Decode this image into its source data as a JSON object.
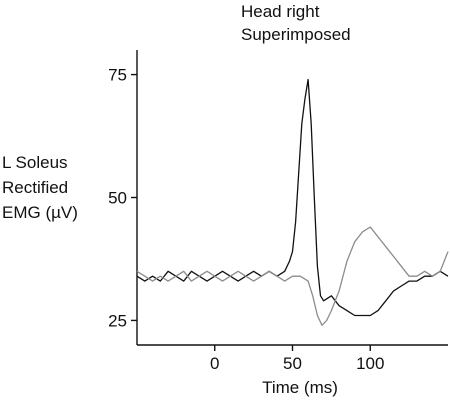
{
  "chart_data": {
    "type": "line",
    "title_lines": [
      "Head right",
      "Superimposed"
    ],
    "ylabel_lines": [
      "L Soleus",
      "Rectified",
      "EMG (µV)"
    ],
    "xlabel": "Time (ms)",
    "xlim": [
      -50,
      150
    ],
    "ylim": [
      20,
      80
    ],
    "xticks": [
      0,
      50,
      100
    ],
    "yticks": [
      25,
      50,
      75
    ],
    "grid": false,
    "legend": "none",
    "series": [
      {
        "color": "#111111",
        "points": [
          [
            -50,
            34
          ],
          [
            -45,
            33
          ],
          [
            -40,
            34
          ],
          [
            -35,
            33
          ],
          [
            -30,
            35
          ],
          [
            -25,
            34
          ],
          [
            -20,
            33
          ],
          [
            -15,
            35
          ],
          [
            -10,
            34
          ],
          [
            -5,
            33
          ],
          [
            0,
            34
          ],
          [
            5,
            35
          ],
          [
            10,
            34
          ],
          [
            15,
            33
          ],
          [
            20,
            34
          ],
          [
            25,
            35
          ],
          [
            30,
            34
          ],
          [
            35,
            35
          ],
          [
            40,
            34
          ],
          [
            45,
            35
          ],
          [
            48,
            37
          ],
          [
            50,
            39
          ],
          [
            52,
            45
          ],
          [
            54,
            55
          ],
          [
            56,
            65
          ],
          [
            58,
            70
          ],
          [
            60,
            74
          ],
          [
            62,
            65
          ],
          [
            64,
            50
          ],
          [
            66,
            36
          ],
          [
            68,
            30
          ],
          [
            70,
            29
          ],
          [
            75,
            30
          ],
          [
            80,
            28
          ],
          [
            85,
            27
          ],
          [
            90,
            26
          ],
          [
            95,
            26
          ],
          [
            100,
            26
          ],
          [
            105,
            27
          ],
          [
            110,
            29
          ],
          [
            115,
            31
          ],
          [
            120,
            32
          ],
          [
            125,
            33
          ],
          [
            130,
            33
          ],
          [
            135,
            34
          ],
          [
            140,
            34
          ],
          [
            145,
            35
          ],
          [
            150,
            34
          ]
        ]
      },
      {
        "color": "#8c8c8c",
        "points": [
          [
            -50,
            35
          ],
          [
            -45,
            34
          ],
          [
            -40,
            33
          ],
          [
            -35,
            34
          ],
          [
            -30,
            33
          ],
          [
            -25,
            34
          ],
          [
            -20,
            35
          ],
          [
            -15,
            33
          ],
          [
            -10,
            34
          ],
          [
            -5,
            35
          ],
          [
            0,
            34
          ],
          [
            5,
            33
          ],
          [
            10,
            34
          ],
          [
            15,
            35
          ],
          [
            20,
            34
          ],
          [
            25,
            33
          ],
          [
            30,
            34
          ],
          [
            35,
            35
          ],
          [
            40,
            34
          ],
          [
            45,
            33
          ],
          [
            50,
            34
          ],
          [
            55,
            34
          ],
          [
            60,
            33
          ],
          [
            63,
            30
          ],
          [
            66,
            26
          ],
          [
            69,
            24
          ],
          [
            72,
            25
          ],
          [
            75,
            27
          ],
          [
            80,
            31
          ],
          [
            85,
            37
          ],
          [
            90,
            41
          ],
          [
            95,
            43
          ],
          [
            100,
            44
          ],
          [
            105,
            42
          ],
          [
            110,
            40
          ],
          [
            115,
            38
          ],
          [
            120,
            36
          ],
          [
            125,
            34
          ],
          [
            130,
            34
          ],
          [
            135,
            35
          ],
          [
            140,
            34
          ],
          [
            145,
            35
          ],
          [
            150,
            39
          ]
        ]
      }
    ]
  }
}
